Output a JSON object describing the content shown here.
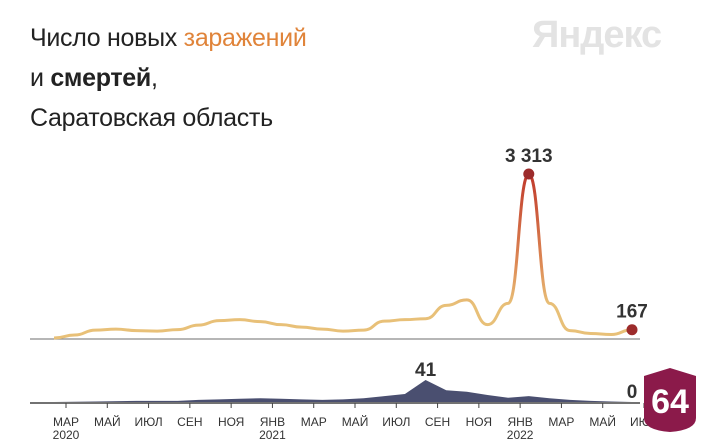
{
  "title": {
    "line1_prefix": "Число новых ",
    "line1_accent": "заражений",
    "line2_prefix": "и ",
    "line2_bold": "смертей",
    "line2_suffix": ",",
    "line3": "Саратовская область"
  },
  "brand": "Яндекс",
  "badge": "64",
  "colors": {
    "infections_line": "#e8c078",
    "infections_peak": "#c0392b",
    "deaths_fill": "#4a4f70",
    "axis": "#444444",
    "marker": "#9c2b2b"
  },
  "chart_data": [
    {
      "type": "line",
      "name": "infections",
      "x_unit": "week",
      "x_start": "2020-03",
      "x_end": "2022-07",
      "ylim": [
        0,
        3313
      ],
      "annotations": [
        {
          "label": "3 313",
          "value": 3313,
          "date": "2022-02"
        },
        {
          "label": "167",
          "value": 167,
          "date": "2022-07"
        }
      ],
      "points": [
        {
          "date": "2020-03",
          "value": 0
        },
        {
          "date": "2020-04",
          "value": 60
        },
        {
          "date": "2020-05",
          "value": 160
        },
        {
          "date": "2020-06",
          "value": 180
        },
        {
          "date": "2020-07",
          "value": 150
        },
        {
          "date": "2020-08",
          "value": 140
        },
        {
          "date": "2020-09",
          "value": 170
        },
        {
          "date": "2020-10",
          "value": 260
        },
        {
          "date": "2020-11",
          "value": 350
        },
        {
          "date": "2020-12",
          "value": 370
        },
        {
          "date": "2021-01",
          "value": 330
        },
        {
          "date": "2021-02",
          "value": 270
        },
        {
          "date": "2021-03",
          "value": 220
        },
        {
          "date": "2021-04",
          "value": 180
        },
        {
          "date": "2021-05",
          "value": 140
        },
        {
          "date": "2021-06",
          "value": 160
        },
        {
          "date": "2021-07",
          "value": 340
        },
        {
          "date": "2021-08",
          "value": 370
        },
        {
          "date": "2021-09",
          "value": 390
        },
        {
          "date": "2021-10",
          "value": 660
        },
        {
          "date": "2021-11",
          "value": 770
        },
        {
          "date": "2021-12",
          "value": 270
        },
        {
          "date": "2022-01",
          "value": 700
        },
        {
          "date": "2022-02",
          "value": 3313
        },
        {
          "date": "2022-03",
          "value": 700
        },
        {
          "date": "2022-04",
          "value": 150
        },
        {
          "date": "2022-05",
          "value": 90
        },
        {
          "date": "2022-06",
          "value": 70
        },
        {
          "date": "2022-07",
          "value": 167
        }
      ]
    },
    {
      "type": "area",
      "name": "deaths",
      "ylim": [
        0,
        41
      ],
      "annotations": [
        {
          "label": "41",
          "value": 41,
          "date": "2021-09"
        },
        {
          "label": "0",
          "value": 0,
          "date": "2022-07"
        }
      ],
      "points": [
        {
          "date": "2020-03",
          "value": 0
        },
        {
          "date": "2020-05",
          "value": 1
        },
        {
          "date": "2020-07",
          "value": 2
        },
        {
          "date": "2020-09",
          "value": 2
        },
        {
          "date": "2020-10",
          "value": 4
        },
        {
          "date": "2020-11",
          "value": 5
        },
        {
          "date": "2020-12",
          "value": 6
        },
        {
          "date": "2021-01",
          "value": 7
        },
        {
          "date": "2021-02",
          "value": 6
        },
        {
          "date": "2021-03",
          "value": 5
        },
        {
          "date": "2021-04",
          "value": 4
        },
        {
          "date": "2021-05",
          "value": 5
        },
        {
          "date": "2021-06",
          "value": 7
        },
        {
          "date": "2021-07",
          "value": 11
        },
        {
          "date": "2021-08",
          "value": 15
        },
        {
          "date": "2021-09",
          "value": 41
        },
        {
          "date": "2021-10",
          "value": 22
        },
        {
          "date": "2021-11",
          "value": 19
        },
        {
          "date": "2021-12",
          "value": 13
        },
        {
          "date": "2022-01",
          "value": 8
        },
        {
          "date": "2022-02",
          "value": 11
        },
        {
          "date": "2022-03",
          "value": 7
        },
        {
          "date": "2022-04",
          "value": 4
        },
        {
          "date": "2022-05",
          "value": 2
        },
        {
          "date": "2022-06",
          "value": 1
        },
        {
          "date": "2022-07",
          "value": 0
        }
      ]
    }
  ],
  "x_ticks": [
    {
      "label": "МАР",
      "year": "2020"
    },
    {
      "label": "МАЙ",
      "year": ""
    },
    {
      "label": "ИЮЛ",
      "year": ""
    },
    {
      "label": "СЕН",
      "year": ""
    },
    {
      "label": "НОЯ",
      "year": ""
    },
    {
      "label": "ЯНВ",
      "year": "2021"
    },
    {
      "label": "МАР",
      "year": ""
    },
    {
      "label": "МАЙ",
      "year": ""
    },
    {
      "label": "ИЮЛ",
      "year": ""
    },
    {
      "label": "СЕН",
      "year": ""
    },
    {
      "label": "НОЯ",
      "year": ""
    },
    {
      "label": "ЯНВ",
      "year": "2022"
    },
    {
      "label": "МАР",
      "year": ""
    },
    {
      "label": "МАЙ",
      "year": ""
    },
    {
      "label": "ИЮЛ",
      "year": ""
    }
  ]
}
